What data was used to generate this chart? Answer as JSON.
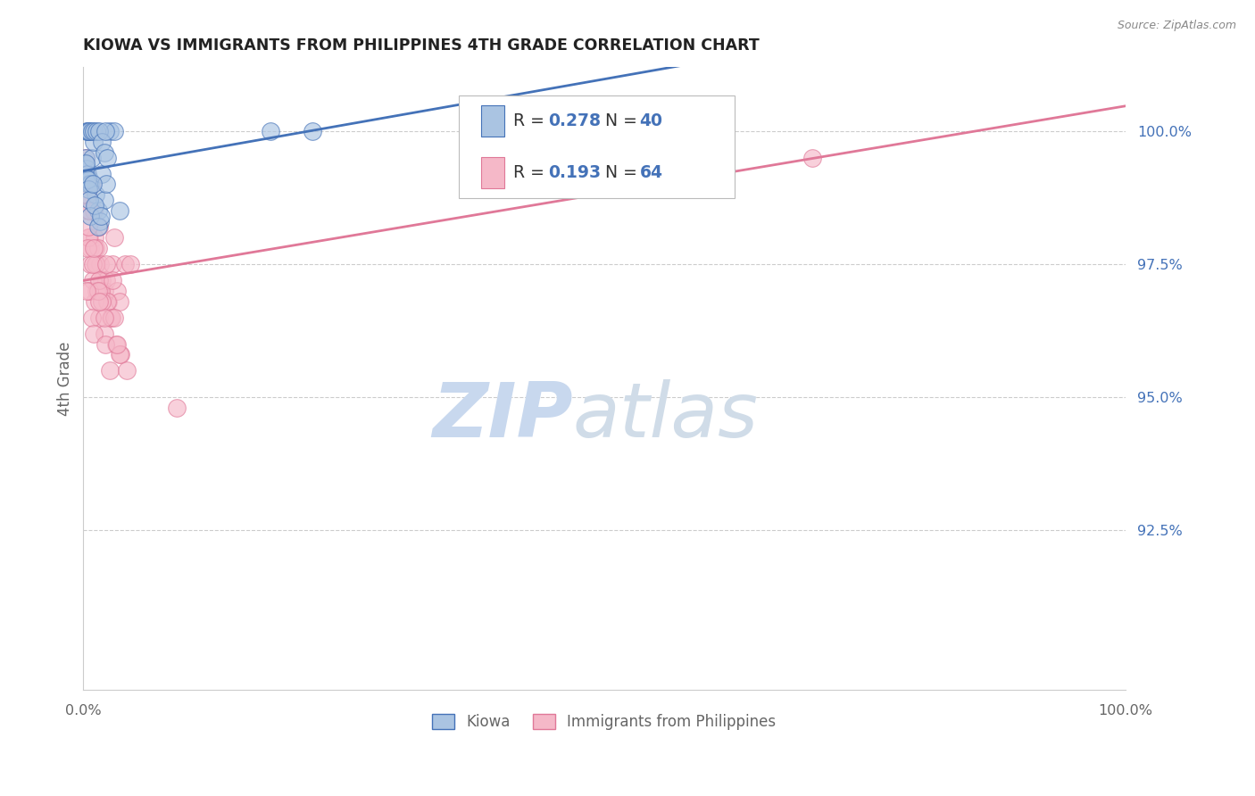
{
  "title": "KIOWA VS IMMIGRANTS FROM PHILIPPINES 4TH GRADE CORRELATION CHART",
  "source": "Source: ZipAtlas.com",
  "ylabel": "4th Grade",
  "yticks": [
    92.5,
    95.0,
    97.5,
    100.0
  ],
  "ytick_labels": [
    "92.5%",
    "95.0%",
    "97.5%",
    "100.0%"
  ],
  "legend_label_blue": "Kiowa",
  "legend_label_pink": "Immigrants from Philippines",
  "blue_color": "#aac4e2",
  "pink_color": "#f5b8c8",
  "blue_line_color": "#4472b8",
  "pink_line_color": "#e07898",
  "watermark_zip": "ZIP",
  "watermark_atlas": "atlas",
  "blue_scatter_x": [
    0.2,
    0.3,
    0.4,
    0.5,
    0.6,
    0.7,
    0.8,
    1.0,
    1.2,
    1.4,
    1.6,
    1.8,
    2.0,
    2.2,
    2.5,
    3.0,
    0.3,
    0.4,
    0.5,
    0.6,
    0.8,
    1.0,
    1.3,
    1.5,
    1.8,
    2.0,
    2.3,
    0.2,
    0.4,
    0.5,
    0.6,
    0.7,
    0.9,
    1.1,
    1.4,
    1.7,
    2.1,
    18.0,
    22.0,
    3.5
  ],
  "blue_scatter_y": [
    99.5,
    99.3,
    99.2,
    99.0,
    99.1,
    99.0,
    99.5,
    99.8,
    98.8,
    98.5,
    98.3,
    99.2,
    98.7,
    99.0,
    100.0,
    100.0,
    100.0,
    100.0,
    100.0,
    100.0,
    100.0,
    100.0,
    100.0,
    100.0,
    99.8,
    99.6,
    99.5,
    99.4,
    99.1,
    98.9,
    98.7,
    98.4,
    99.0,
    98.6,
    98.2,
    98.4,
    100.0,
    100.0,
    100.0,
    98.5
  ],
  "pink_scatter_x": [
    0.2,
    0.3,
    0.4,
    0.5,
    0.6,
    0.7,
    0.8,
    1.0,
    1.1,
    1.2,
    1.3,
    1.4,
    1.5,
    1.6,
    1.8,
    2.0,
    2.2,
    2.4,
    2.6,
    2.8,
    3.0,
    3.2,
    3.5,
    4.0,
    0.3,
    0.5,
    0.7,
    0.9,
    1.1,
    1.3,
    1.5,
    1.7,
    2.0,
    2.3,
    2.7,
    3.1,
    3.6,
    0.4,
    0.6,
    0.8,
    1.0,
    1.2,
    1.5,
    1.8,
    2.1,
    2.5,
    3.0,
    3.5,
    4.2,
    0.5,
    0.9,
    1.4,
    2.0,
    2.8,
    0.3,
    0.6,
    1.0,
    1.5,
    2.2,
    3.2,
    45.0,
    70.0,
    4.5,
    9.0
  ],
  "pink_scatter_y": [
    99.5,
    99.2,
    98.8,
    98.5,
    98.0,
    97.8,
    99.0,
    98.5,
    98.0,
    97.8,
    97.5,
    97.8,
    98.2,
    97.5,
    97.2,
    97.0,
    97.2,
    96.8,
    96.5,
    97.5,
    98.0,
    97.0,
    96.8,
    97.5,
    98.8,
    98.0,
    97.5,
    97.2,
    96.8,
    97.0,
    96.5,
    97.0,
    96.2,
    96.8,
    96.5,
    96.0,
    95.8,
    97.8,
    97.0,
    96.5,
    96.2,
    97.5,
    97.2,
    96.8,
    96.0,
    95.5,
    96.5,
    95.8,
    95.5,
    98.2,
    97.5,
    97.0,
    96.5,
    97.2,
    97.0,
    98.5,
    97.8,
    96.8,
    97.5,
    96.0,
    100.0,
    99.5,
    97.5,
    94.8
  ],
  "xlim": [
    0,
    100
  ],
  "ylim": [
    89.5,
    101.2
  ],
  "title_color": "#222222",
  "axis_color": "#666666",
  "grid_color": "#cccccc",
  "tick_label_color": "#4472b8",
  "watermark_zip_color": "#c8d8ee",
  "watermark_atlas_color": "#d0dce8"
}
